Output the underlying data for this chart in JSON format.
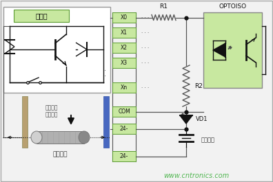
{
  "bg_color": "#f2f2f2",
  "border_color": "#aaaaaa",
  "green_light": "#c8e8a0",
  "green_dark": "#5a9a30",
  "line_color": "#555555",
  "title_text": "主電路",
  "label_x0": "X0",
  "label_x1": "X1",
  "label_x2": "X2",
  "label_x3": "X3",
  "label_xn": "Xn",
  "label_com": "COM",
  "label_24m": "24-",
  "label_24m2": "24-",
  "label_r1": "R1",
  "label_r2": "R2",
  "label_optoiso": "OPTOISO",
  "label_vd1": "VD1",
  "label_ext_power": "外置電源",
  "label_int_power": "內置電源",
  "label_dc_switch": "直流兩線\n接近開關",
  "watermark": "www.cntronics.com",
  "watermark_color": "#40b040",
  "dots_label": "· · ·",
  "vert_dots": "·\n·\n·"
}
